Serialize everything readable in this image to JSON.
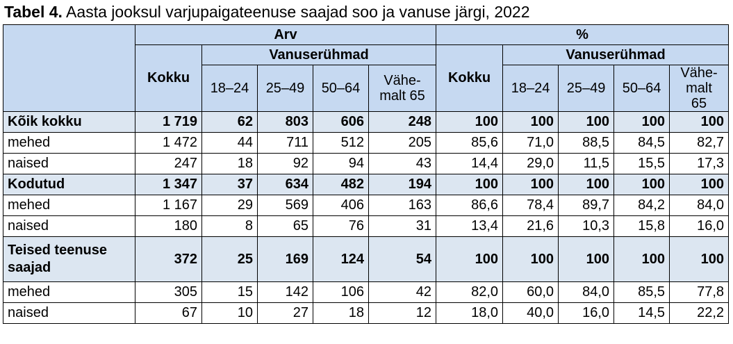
{
  "title": {
    "bold": "Tabel 4.",
    "text": " Aasta jooksul varjupaigateenuse saajad soo ja vanuse järgi, 2022"
  },
  "header": {
    "arv": "Arv",
    "pct": "%",
    "vanuserühmad": "Vanuserühmad",
    "kokku": "Kokku",
    "ages": [
      "18–24",
      "25–49",
      "50–64"
    ],
    "vahemalt65_arv": "Vähe-\nmalt 65",
    "vahemalt65_pct": "Vähe-\nmalt\n65"
  },
  "rows": [
    {
      "label": "Kõik kokku",
      "group": true,
      "values": [
        "1 719",
        "62",
        "803",
        "606",
        "248",
        "100",
        "100",
        "100",
        "100",
        "100"
      ]
    },
    {
      "label": "mehed",
      "group": false,
      "values": [
        "1 472",
        "44",
        "711",
        "512",
        "205",
        "85,6",
        "71,0",
        "88,5",
        "84,5",
        "82,7"
      ]
    },
    {
      "label": "naised",
      "group": false,
      "values": [
        "247",
        "18",
        "92",
        "94",
        "43",
        "14,4",
        "29,0",
        "11,5",
        "15,5",
        "17,3"
      ]
    },
    {
      "label": "Kodutud",
      "group": true,
      "values": [
        "1 347",
        "37",
        "634",
        "482",
        "194",
        "100",
        "100",
        "100",
        "100",
        "100"
      ]
    },
    {
      "label": "mehed",
      "group": false,
      "values": [
        "1 167",
        "29",
        "569",
        "406",
        "163",
        "86,6",
        "78,4",
        "89,7",
        "84,2",
        "84,0"
      ]
    },
    {
      "label": "naised",
      "group": false,
      "values": [
        "180",
        "8",
        "65",
        "76",
        "31",
        "13,4",
        "21,6",
        "10,3",
        "15,8",
        "16,0"
      ]
    },
    {
      "label": "Teised teenuse saajad",
      "group": true,
      "tall": true,
      "values": [
        "372",
        "25",
        "169",
        "124",
        "54",
        "100",
        "100",
        "100",
        "100",
        "100"
      ]
    },
    {
      "label": "mehed",
      "group": false,
      "values": [
        "305",
        "15",
        "142",
        "106",
        "42",
        "82,0",
        "60,0",
        "84,0",
        "85,5",
        "77,8"
      ]
    },
    {
      "label": "naised",
      "group": false,
      "values": [
        "67",
        "10",
        "27",
        "18",
        "12",
        "18,0",
        "40,0",
        "16,0",
        "14,5",
        "22,2"
      ]
    }
  ]
}
